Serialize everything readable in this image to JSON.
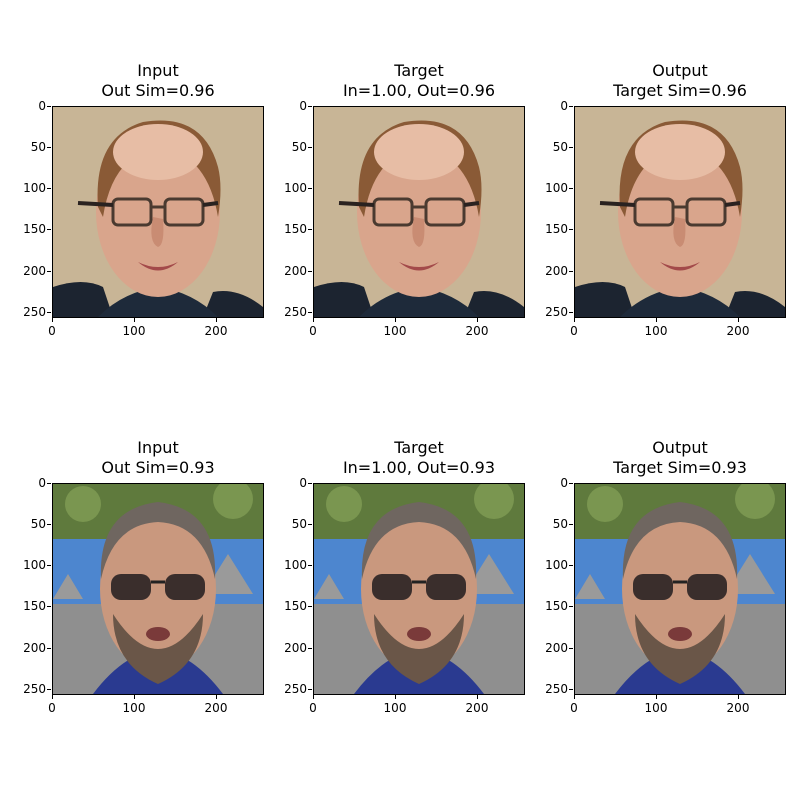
{
  "figure": {
    "rows": [
      {
        "panels": [
          {
            "title_line1": "Input",
            "title_line2": "Out Sim=0.96",
            "face": "bald-man-glasses"
          },
          {
            "title_line1": "Target",
            "title_line2": "In=1.00, Out=0.96",
            "face": "bald-man-glasses"
          },
          {
            "title_line1": "Output",
            "title_line2": "Target Sim=0.96",
            "face": "bald-man-glasses"
          }
        ]
      },
      {
        "panels": [
          {
            "title_line1": "Input",
            "title_line2": "Out Sim=0.93",
            "face": "man-sunglasses-outdoor"
          },
          {
            "title_line1": "Target",
            "title_line2": "In=1.00, Out=0.93",
            "face": "man-sunglasses-outdoor"
          },
          {
            "title_line1": "Output",
            "title_line2": "Target Sim=0.93",
            "face": "man-sunglasses-outdoor"
          }
        ]
      }
    ],
    "yticks": [
      "0",
      "50",
      "100",
      "150",
      "200",
      "250"
    ],
    "xticks": [
      "0",
      "100",
      "200"
    ]
  }
}
